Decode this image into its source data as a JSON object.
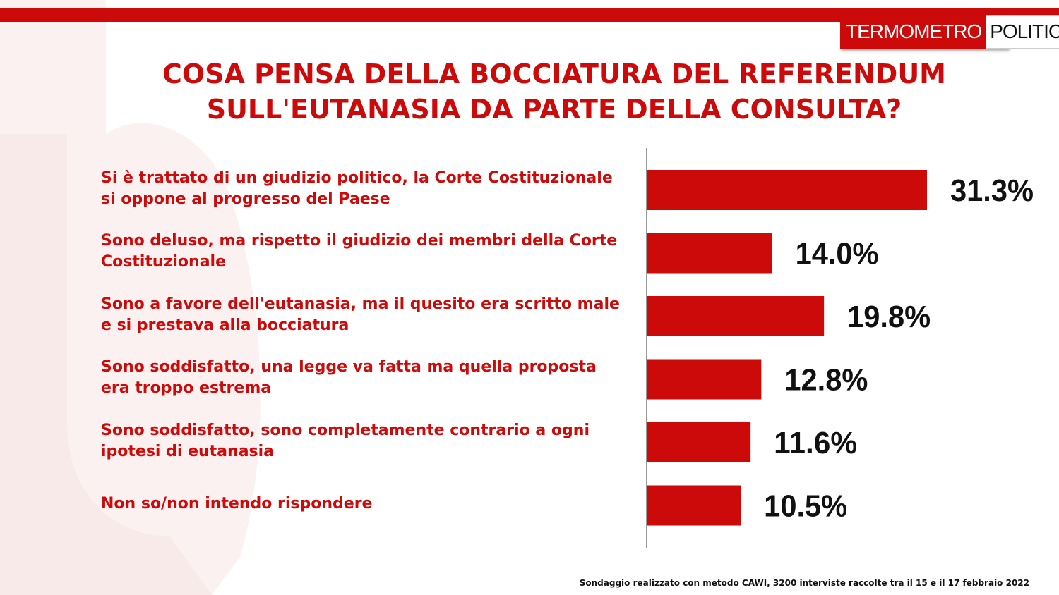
{
  "brand": {
    "logo_part1": "TERMOMETRO",
    "logo_part2": "POLITICO",
    "accent_color": "#cc0a0a"
  },
  "title": {
    "line1": "COSA PENSA DELLA BOCCIATURA DEL REFERENDUM",
    "line2": "SULL'EUTANASIA DA PARTE DELLA CONSULTA?"
  },
  "chart_data": {
    "type": "bar",
    "orientation": "horizontal",
    "title": "COSA PENSA DELLA BOCCIATURA DEL REFERENDUM SULL'EUTANASIA DA PARTE DELLA CONSULTA?",
    "categories": [
      "Si è trattato di un giudizio politico, la Corte Costituzionale si oppone al progresso del Paese",
      "Sono deluso, ma rispetto il giudizio dei membri della Corte Costituzionale",
      "Sono a favore dell'eutanasia, ma il quesito era scritto male e si prestava alla bocciatura",
      "Sono soddisfatto, una legge va fatta ma quella proposta era troppo estrema",
      "Sono soddisfatto, sono completamente contrario a ogni ipotesi di eutanasia",
      "Non so/non intendo rispondere"
    ],
    "category_lines": [
      [
        "Si è trattato di un giudizio politico, la Corte Costituzionale",
        "si oppone al progresso del Paese"
      ],
      [
        "Sono deluso, ma rispetto il giudizio dei membri della Corte",
        "Costituzionale"
      ],
      [
        "Sono a favore dell'eutanasia, ma il quesito era scritto male",
        "e si prestava alla bocciatura"
      ],
      [
        "Sono soddisfatto, una legge va fatta ma quella proposta",
        "era troppo estrema"
      ],
      [
        "Sono soddisfatto, sono completamente contrario a ogni",
        "ipotesi di eutanasia"
      ],
      [
        "Non so/non intendo rispondere"
      ]
    ],
    "values": [
      31.3,
      14.0,
      19.8,
      12.8,
      11.6,
      10.5
    ],
    "value_labels": [
      "31.3%",
      "14.0%",
      "19.8%",
      "12.8%",
      "11.6%",
      "10.5%"
    ],
    "unit": "%",
    "bar_color": "#cc0a0a",
    "grid": false,
    "legend": "none"
  },
  "footnote": "Sondaggio realizzato con metodo CAWI, 3200 interviste raccolte tra il 15 e il 17 febbraio 2022"
}
